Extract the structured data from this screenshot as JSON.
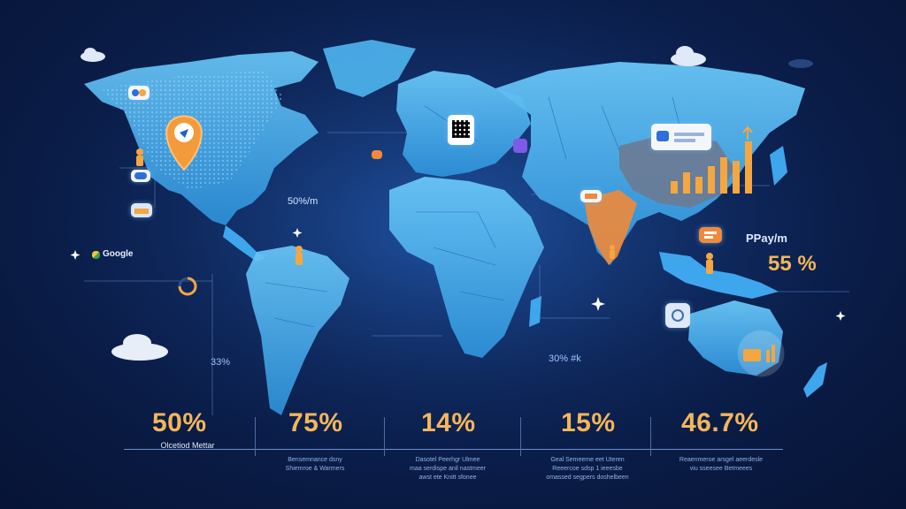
{
  "map_labels": {
    "north_atlantic": "50%/m",
    "south_america_left": "33%",
    "indian_ocean": "30% #k",
    "google_label": "Google",
    "asia_brand": "PPay/m",
    "asia_percent": "55 %"
  },
  "stats": [
    {
      "value": "50%",
      "caption_lines": [
        "Olcetiod Mettar"
      ]
    },
    {
      "value": "75%",
      "caption_lines": [
        "Bensemnance dsny",
        "Shiemroe & Warmers"
      ]
    },
    {
      "value": "14%",
      "caption_lines": [
        "Dasotel Peerhgr Ulmee",
        "maa serdispe anil nastmeer",
        "awst ete Knitt sfonee"
      ]
    },
    {
      "value": "15%",
      "caption_lines": [
        "Geal Semeeme eet Uteren",
        "Reeercoe sdsp 1 ieeesbe",
        "omassed segpers doshelbeen"
      ]
    },
    {
      "value": "46.7%",
      "caption_lines": [
        "Reaenmeroe arsgel aeerdesle",
        "viu sseesee Betmeees"
      ]
    }
  ],
  "colors": {
    "land": "#3ea6ec",
    "land_light": "#69c6f7",
    "accent_orange": "#f4a640",
    "stat_text": "#f4b65a",
    "background": "#0b1f4d"
  },
  "icons": [
    "map-pin-icon",
    "qr-code-icon",
    "bar-chart-icon",
    "cloud-icon",
    "person-icon",
    "payment-card-icon",
    "ring-progress-icon",
    "sparkle-icon"
  ]
}
